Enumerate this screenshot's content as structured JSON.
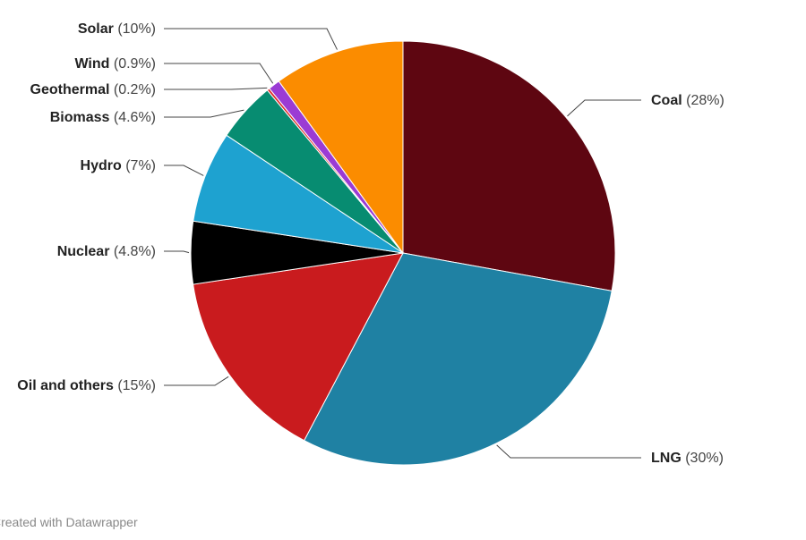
{
  "chart_data": {
    "type": "pie",
    "title": "",
    "legend": "none",
    "slices": [
      {
        "name": "Coal",
        "pct_label": "(28%)",
        "value": 28,
        "color": "#5e0611"
      },
      {
        "name": "LNG",
        "pct_label": "(30%)",
        "value": 30,
        "color": "#1f81a3"
      },
      {
        "name": "Oil and others",
        "pct_label": "(15%)",
        "value": 15,
        "color": "#c91b1e"
      },
      {
        "name": "Nuclear",
        "pct_label": "(4.8%)",
        "value": 4.8,
        "color": "#000000"
      },
      {
        "name": "Hydro",
        "pct_label": "(7%)",
        "value": 7,
        "color": "#1ea2d0"
      },
      {
        "name": "Biomass",
        "pct_label": "(4.6%)",
        "value": 4.6,
        "color": "#078c71"
      },
      {
        "name": "Geothermal",
        "pct_label": "(0.2%)",
        "value": 0.2,
        "color": "#e02a2a"
      },
      {
        "name": "Wind",
        "pct_label": "(0.9%)",
        "value": 0.9,
        "color": "#9b3bd4"
      },
      {
        "name": "Solar",
        "pct_label": "(10%)",
        "value": 10,
        "color": "#fb8c00"
      }
    ]
  },
  "footer": {
    "credit": "Created with Datawrapper"
  }
}
